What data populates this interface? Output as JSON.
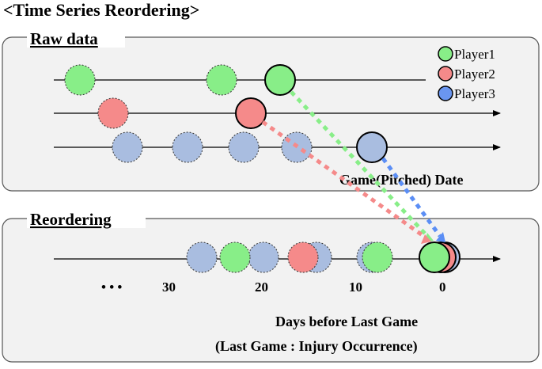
{
  "title": "<Time Series Reordering>",
  "raw_panel": {
    "label": "Raw data",
    "axis_label": "Game(Pitched) Date"
  },
  "legend": [
    {
      "name": "Player1",
      "color": "#88ee88"
    },
    {
      "name": "Player2",
      "color": "#f58a8a"
    },
    {
      "name": "Player3",
      "color": "#a9bde0"
    }
  ],
  "arrow_colors": [
    "#88ee88",
    "#f58a8a",
    "#5b8ef5"
  ],
  "reorder_panel": {
    "label": "Reordering",
    "ellipsis": "• • •",
    "ticks": [
      "30",
      "20",
      "10",
      "0"
    ],
    "axis_label_line1": "Days before Last Game",
    "axis_label_line2": "(Last Game : Injury Occurrence)"
  }
}
